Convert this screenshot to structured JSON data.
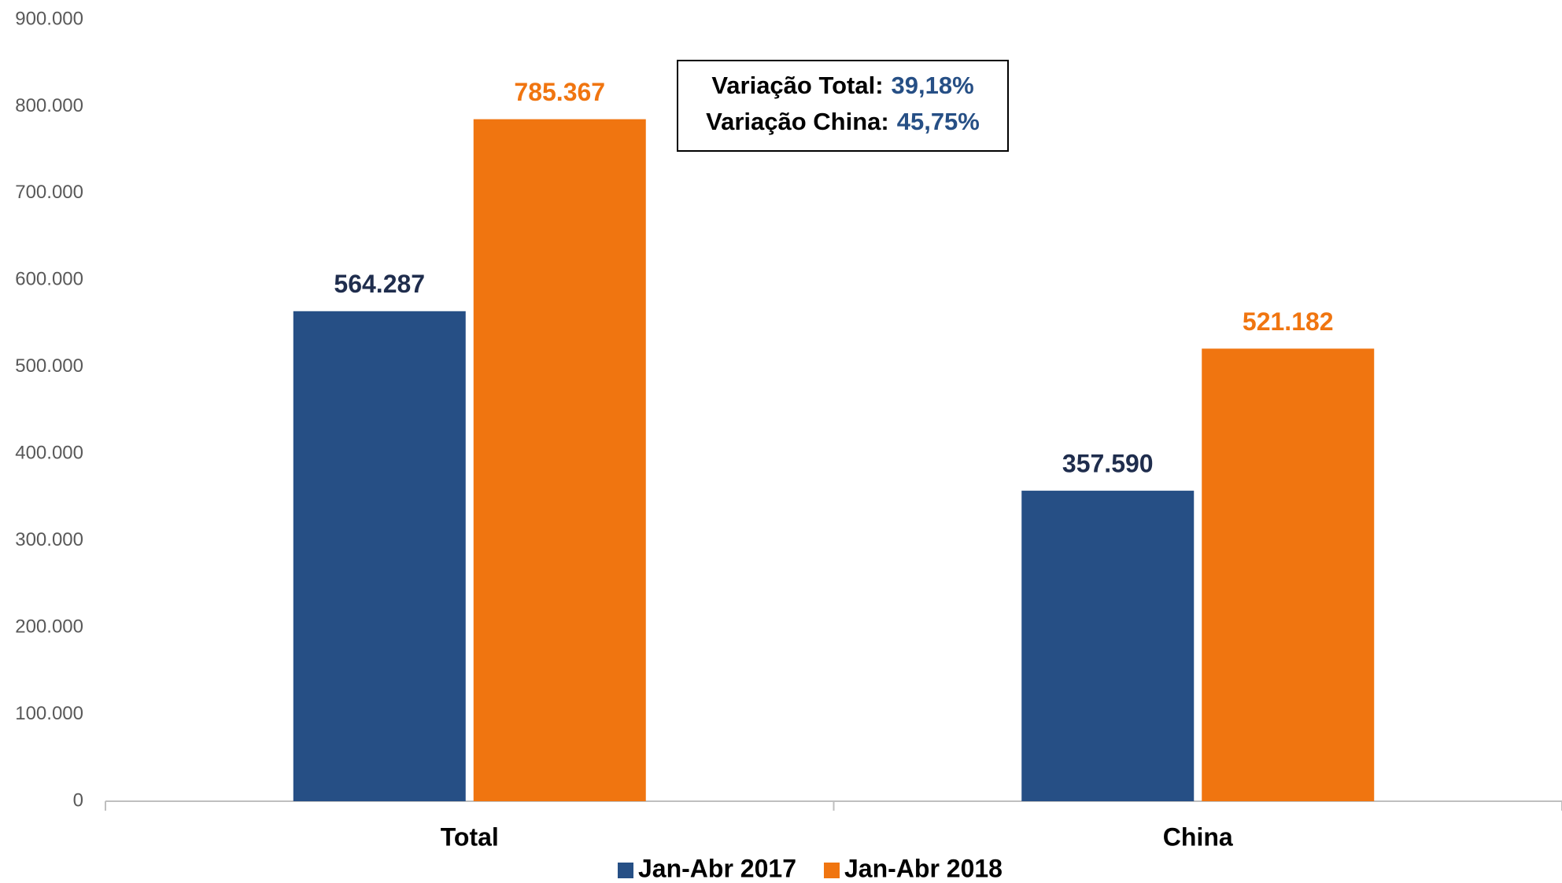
{
  "chart_data": {
    "type": "bar",
    "categories": [
      "Total",
      "China"
    ],
    "series": [
      {
        "name": "Jan-Abr 2017",
        "color": "#264f85",
        "label_color": "#1f2d4d",
        "values": [
          564287,
          357590
        ],
        "value_labels": [
          "564.287",
          "357.590"
        ]
      },
      {
        "name": "Jan-Abr 2018",
        "color": "#f07510",
        "label_color": "#f07510",
        "values": [
          785367,
          521182
        ],
        "value_labels": [
          "785.367",
          "521.182"
        ]
      }
    ],
    "ylim": [
      0,
      900000
    ],
    "yticks": [
      0,
      {
        "value": 100000,
        "label": "100.000"
      },
      {
        "value": 200000,
        "label": "200.000"
      },
      {
        "value": 300000,
        "label": "300.000"
      },
      {
        "value": 400000,
        "label": "400.000"
      },
      {
        "value": 500000,
        "label": "500.000"
      },
      {
        "value": 600000,
        "label": "600.000"
      },
      {
        "value": 700000,
        "label": "700.000"
      },
      {
        "value": 800000,
        "label": "800.000"
      },
      {
        "value": 900000,
        "label": "900.000"
      }
    ],
    "grid": false,
    "legend": "bottom",
    "annotations": [
      {
        "text": "Variação Total:",
        "value": "39,18%"
      },
      {
        "text": "Variação China:",
        "value": "45,75%"
      }
    ]
  }
}
